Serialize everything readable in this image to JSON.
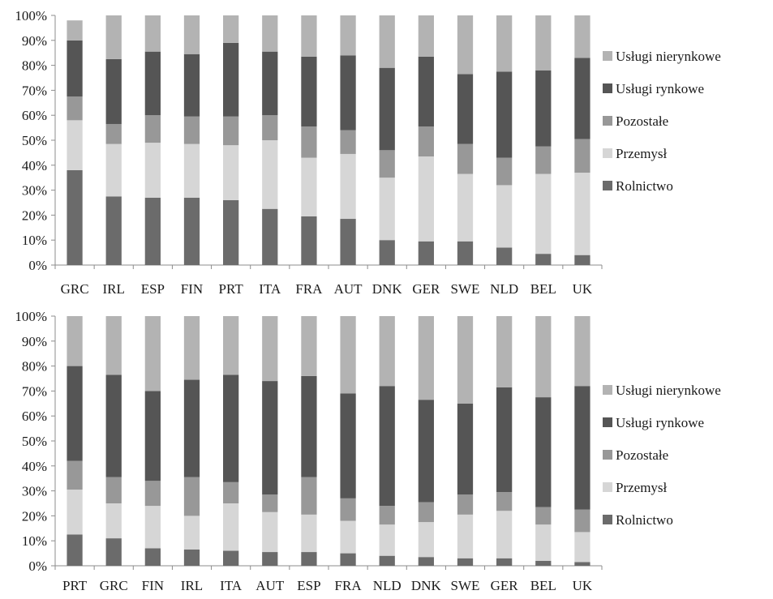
{
  "chart_data": [
    {
      "type": "bar",
      "stacked": true,
      "percent": true,
      "title": "",
      "xlabel": "",
      "ylabel": "",
      "ylim": [
        0,
        100
      ],
      "yticks": [
        "0%",
        "10%",
        "20%",
        "30%",
        "40%",
        "50%",
        "60%",
        "70%",
        "80%",
        "90%",
        "100%"
      ],
      "categories": [
        "GRC",
        "IRL",
        "ESP",
        "FIN",
        "PRT",
        "ITA",
        "FRA",
        "AUT",
        "DNK",
        "GER",
        "SWE",
        "NLD",
        "BEL",
        "UK"
      ],
      "legend_position": "right",
      "series": [
        {
          "name": "Rolnictwo",
          "color": "#6b6b6b",
          "values": [
            38,
            27.5,
            27,
            27,
            26,
            22.5,
            19.5,
            18.5,
            10,
            9.5,
            9.5,
            7,
            4.5,
            4
          ]
        },
        {
          "name": "Przemysł",
          "color": "#d6d6d6",
          "values": [
            20,
            21,
            22,
            21.5,
            22,
            27.5,
            23.5,
            26,
            25,
            34,
            27,
            25,
            32,
            33
          ]
        },
        {
          "name": "Pozostałe",
          "color": "#989898",
          "values": [
            9.5,
            8,
            11,
            11,
            11.5,
            10,
            12.5,
            9.5,
            11,
            12,
            12,
            11,
            11,
            13.5
          ]
        },
        {
          "name": "Usługi rynkowe",
          "color": "#555555",
          "values": [
            22.5,
            26,
            25.5,
            25,
            29.5,
            25.5,
            28,
            30,
            33,
            28,
            28,
            34.5,
            30.5,
            32.5
          ]
        },
        {
          "name": "Usługi nierynkowe",
          "color": "#b3b3b3",
          "values": [
            8,
            17.5,
            14.5,
            15.5,
            11,
            14.5,
            16.5,
            16,
            21,
            16.5,
            23.5,
            22.5,
            22,
            17
          ]
        }
      ]
    },
    {
      "type": "bar",
      "stacked": true,
      "percent": true,
      "title": "",
      "xlabel": "",
      "ylabel": "",
      "ylim": [
        0,
        100
      ],
      "yticks": [
        "0%",
        "10%",
        "20%",
        "30%",
        "40%",
        "50%",
        "60%",
        "70%",
        "80%",
        "90%",
        "100%"
      ],
      "categories": [
        "PRT",
        "GRC",
        "FIN",
        "IRL",
        "ITA",
        "AUT",
        "ESP",
        "FRA",
        "NLD",
        "DNK",
        "SWE",
        "GER",
        "BEL",
        "UK"
      ],
      "legend_position": "right",
      "series": [
        {
          "name": "Rolnictwo",
          "color": "#6b6b6b",
          "values": [
            12.5,
            11,
            7,
            6.5,
            6,
            5.5,
            5.5,
            5,
            4,
            3.5,
            3,
            3,
            2,
            1.5
          ]
        },
        {
          "name": "Przemysł",
          "color": "#d6d6d6",
          "values": [
            18,
            14,
            17,
            13.5,
            19,
            16,
            15,
            13,
            12.5,
            14,
            17.5,
            19,
            14.5,
            12
          ]
        },
        {
          "name": "Pozostałe",
          "color": "#989898",
          "values": [
            11.5,
            10.5,
            10,
            15.5,
            8.5,
            7,
            15,
            9,
            7.5,
            8,
            8,
            7.5,
            7,
            9
          ]
        },
        {
          "name": "Usługi rynkowe",
          "color": "#555555",
          "values": [
            38,
            41,
            36,
            39,
            43,
            45.5,
            40.5,
            42,
            48,
            41,
            36.5,
            42,
            44,
            49.5
          ]
        },
        {
          "name": "Usługi nierynkowe",
          "color": "#b3b3b3",
          "values": [
            20,
            23.5,
            30,
            25.5,
            23.5,
            26,
            24,
            31,
            28,
            33.5,
            35,
            28.5,
            32.5,
            28
          ]
        }
      ]
    }
  ]
}
